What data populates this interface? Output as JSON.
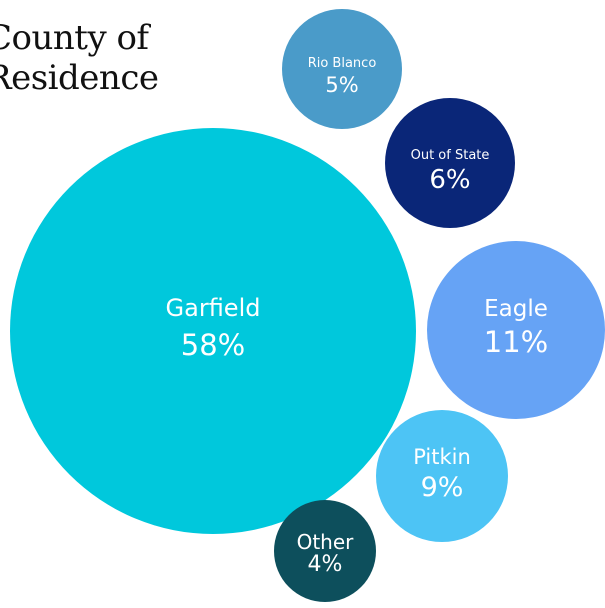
{
  "chart_data": {
    "type": "bubble",
    "title_lines": [
      "County of",
      "Residence"
    ],
    "bubbles": [
      {
        "name": "Garfield",
        "value": 58,
        "label": "58%",
        "color": "#00c8dc"
      },
      {
        "name": "Eagle",
        "value": 11,
        "label": "11%",
        "color": "#66a3f5"
      },
      {
        "name": "Pitkin",
        "value": 9,
        "label": "9%",
        "color": "#4dc4f5"
      },
      {
        "name": "Out of State",
        "value": 6,
        "label": "6%",
        "color": "#0a2678"
      },
      {
        "name": "Rio Blanco",
        "value": 5,
        "label": "5%",
        "color": "#4a9bc9"
      },
      {
        "name": "Other",
        "value": 4,
        "label": "4%",
        "color": "#0d4f5c"
      }
    ]
  }
}
